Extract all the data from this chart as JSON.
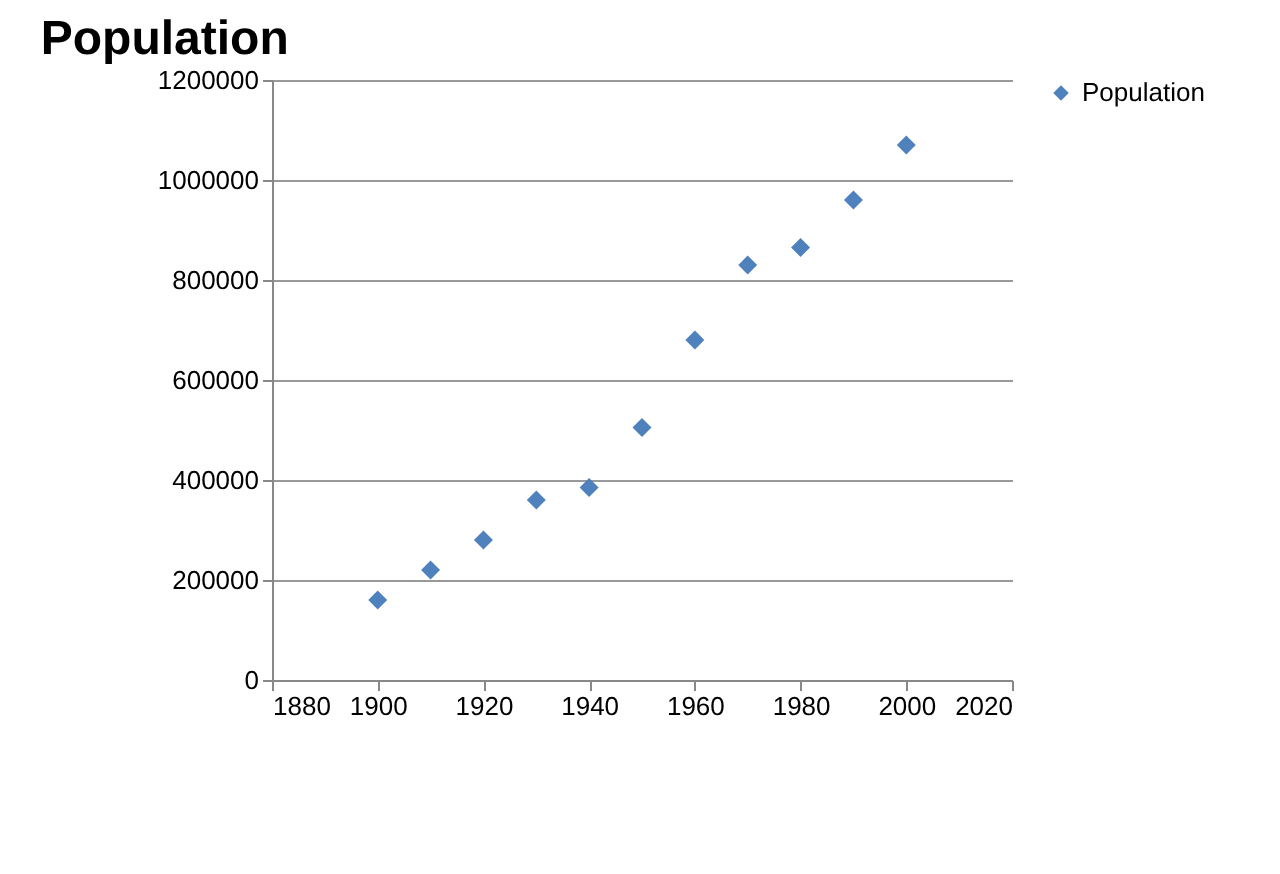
{
  "chart_data": {
    "type": "scatter",
    "title": "Population",
    "x": [
      1900,
      1910,
      1920,
      1930,
      1940,
      1950,
      1960,
      1970,
      1980,
      1990,
      2000
    ],
    "series": [
      {
        "name": "Population",
        "color": "#4f81bd",
        "values": [
          160000,
          220000,
          280000,
          360000,
          385000,
          505000,
          680000,
          830000,
          865000,
          960000,
          1070000
        ]
      }
    ],
    "xlim": [
      1880,
      2020
    ],
    "xticks": [
      1880,
      1900,
      1920,
      1940,
      1960,
      1980,
      2000,
      2020
    ],
    "ylim": [
      0,
      1200000
    ],
    "yticks": [
      0,
      200000,
      400000,
      600000,
      800000,
      1000000,
      1200000
    ],
    "grid": "y",
    "legend": "right",
    "marker": "diamond"
  }
}
